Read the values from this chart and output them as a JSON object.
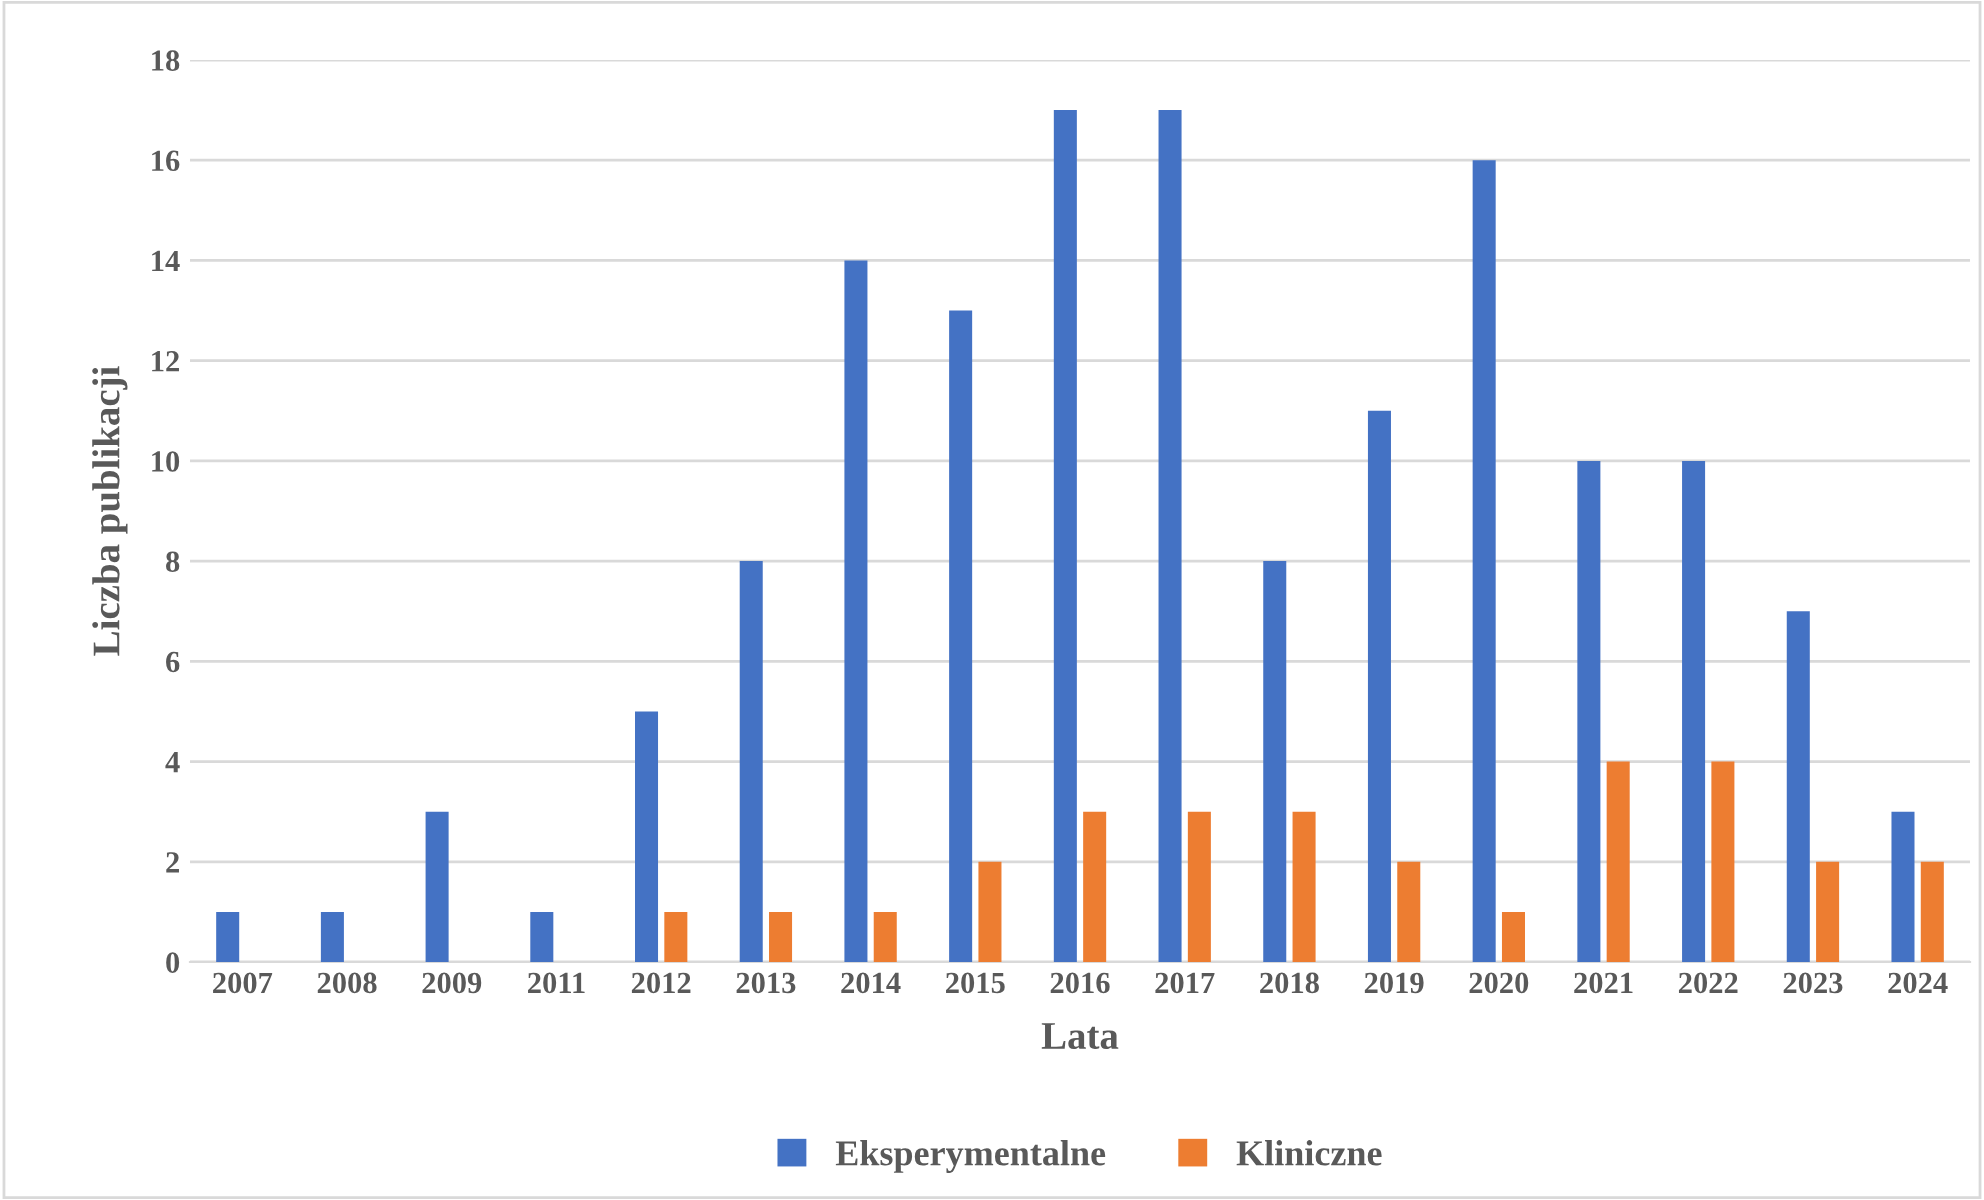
{
  "chart_data": {
    "type": "bar",
    "xlabel": "Lata",
    "ylabel": "Liczba publikacji",
    "categories": [
      "2007",
      "2008",
      "2009",
      "2011",
      "2012",
      "2013",
      "2014",
      "2015",
      "2016",
      "2017",
      "2018",
      "2019",
      "2020",
      "2021",
      "2022",
      "2023",
      "2024"
    ],
    "series": [
      {
        "name": "Eksperymentalne",
        "color": "#4472c4",
        "values": [
          1,
          1,
          3,
          1,
          5,
          8,
          14,
          13,
          17,
          17,
          8,
          11,
          16,
          10,
          10,
          7,
          3
        ]
      },
      {
        "name": "Kliniczne",
        "color": "#ed7d31",
        "values": [
          null,
          null,
          null,
          null,
          1,
          1,
          1,
          2,
          3,
          3,
          3,
          2,
          1,
          4,
          4,
          2,
          2
        ]
      }
    ],
    "ylim": [
      0,
      18
    ],
    "yticks": [
      0,
      2,
      4,
      6,
      8,
      10,
      12,
      14,
      16,
      18
    ],
    "grid": "y",
    "legend": "bottom"
  }
}
